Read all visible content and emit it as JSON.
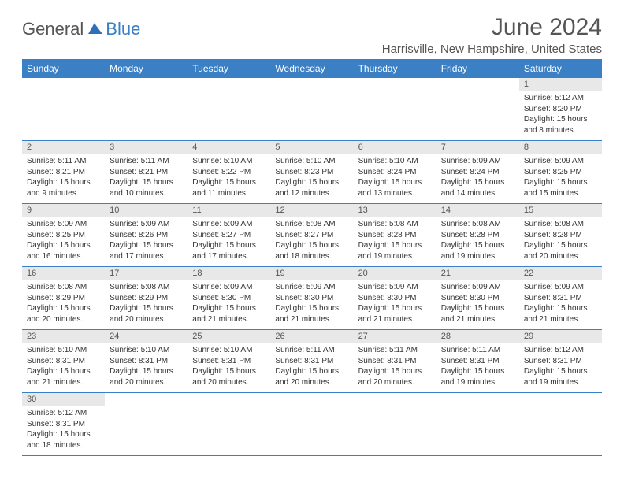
{
  "logo": {
    "general": "General",
    "blue": "Blue"
  },
  "title": "June 2024",
  "location": "Harrisville, New Hampshire, United States",
  "colors": {
    "header_bg": "#3b7fc4",
    "daynum_bg": "#e8e8e8",
    "border": "#3b7fc4"
  },
  "dayNames": [
    "Sunday",
    "Monday",
    "Tuesday",
    "Wednesday",
    "Thursday",
    "Friday",
    "Saturday"
  ],
  "weeks": [
    [
      {
        "empty": true
      },
      {
        "empty": true
      },
      {
        "empty": true
      },
      {
        "empty": true
      },
      {
        "empty": true
      },
      {
        "empty": true
      },
      {
        "n": "1",
        "sunrise": "Sunrise: 5:12 AM",
        "sunset": "Sunset: 8:20 PM",
        "daylight": "Daylight: 15 hours and 8 minutes."
      }
    ],
    [
      {
        "n": "2",
        "sunrise": "Sunrise: 5:11 AM",
        "sunset": "Sunset: 8:21 PM",
        "daylight": "Daylight: 15 hours and 9 minutes."
      },
      {
        "n": "3",
        "sunrise": "Sunrise: 5:11 AM",
        "sunset": "Sunset: 8:21 PM",
        "daylight": "Daylight: 15 hours and 10 minutes."
      },
      {
        "n": "4",
        "sunrise": "Sunrise: 5:10 AM",
        "sunset": "Sunset: 8:22 PM",
        "daylight": "Daylight: 15 hours and 11 minutes."
      },
      {
        "n": "5",
        "sunrise": "Sunrise: 5:10 AM",
        "sunset": "Sunset: 8:23 PM",
        "daylight": "Daylight: 15 hours and 12 minutes."
      },
      {
        "n": "6",
        "sunrise": "Sunrise: 5:10 AM",
        "sunset": "Sunset: 8:24 PM",
        "daylight": "Daylight: 15 hours and 13 minutes."
      },
      {
        "n": "7",
        "sunrise": "Sunrise: 5:09 AM",
        "sunset": "Sunset: 8:24 PM",
        "daylight": "Daylight: 15 hours and 14 minutes."
      },
      {
        "n": "8",
        "sunrise": "Sunrise: 5:09 AM",
        "sunset": "Sunset: 8:25 PM",
        "daylight": "Daylight: 15 hours and 15 minutes."
      }
    ],
    [
      {
        "n": "9",
        "sunrise": "Sunrise: 5:09 AM",
        "sunset": "Sunset: 8:25 PM",
        "daylight": "Daylight: 15 hours and 16 minutes."
      },
      {
        "n": "10",
        "sunrise": "Sunrise: 5:09 AM",
        "sunset": "Sunset: 8:26 PM",
        "daylight": "Daylight: 15 hours and 17 minutes."
      },
      {
        "n": "11",
        "sunrise": "Sunrise: 5:09 AM",
        "sunset": "Sunset: 8:27 PM",
        "daylight": "Daylight: 15 hours and 17 minutes."
      },
      {
        "n": "12",
        "sunrise": "Sunrise: 5:08 AM",
        "sunset": "Sunset: 8:27 PM",
        "daylight": "Daylight: 15 hours and 18 minutes."
      },
      {
        "n": "13",
        "sunrise": "Sunrise: 5:08 AM",
        "sunset": "Sunset: 8:28 PM",
        "daylight": "Daylight: 15 hours and 19 minutes."
      },
      {
        "n": "14",
        "sunrise": "Sunrise: 5:08 AM",
        "sunset": "Sunset: 8:28 PM",
        "daylight": "Daylight: 15 hours and 19 minutes."
      },
      {
        "n": "15",
        "sunrise": "Sunrise: 5:08 AM",
        "sunset": "Sunset: 8:28 PM",
        "daylight": "Daylight: 15 hours and 20 minutes."
      }
    ],
    [
      {
        "n": "16",
        "sunrise": "Sunrise: 5:08 AM",
        "sunset": "Sunset: 8:29 PM",
        "daylight": "Daylight: 15 hours and 20 minutes."
      },
      {
        "n": "17",
        "sunrise": "Sunrise: 5:08 AM",
        "sunset": "Sunset: 8:29 PM",
        "daylight": "Daylight: 15 hours and 20 minutes."
      },
      {
        "n": "18",
        "sunrise": "Sunrise: 5:09 AM",
        "sunset": "Sunset: 8:30 PM",
        "daylight": "Daylight: 15 hours and 21 minutes."
      },
      {
        "n": "19",
        "sunrise": "Sunrise: 5:09 AM",
        "sunset": "Sunset: 8:30 PM",
        "daylight": "Daylight: 15 hours and 21 minutes."
      },
      {
        "n": "20",
        "sunrise": "Sunrise: 5:09 AM",
        "sunset": "Sunset: 8:30 PM",
        "daylight": "Daylight: 15 hours and 21 minutes."
      },
      {
        "n": "21",
        "sunrise": "Sunrise: 5:09 AM",
        "sunset": "Sunset: 8:30 PM",
        "daylight": "Daylight: 15 hours and 21 minutes."
      },
      {
        "n": "22",
        "sunrise": "Sunrise: 5:09 AM",
        "sunset": "Sunset: 8:31 PM",
        "daylight": "Daylight: 15 hours and 21 minutes."
      }
    ],
    [
      {
        "n": "23",
        "sunrise": "Sunrise: 5:10 AM",
        "sunset": "Sunset: 8:31 PM",
        "daylight": "Daylight: 15 hours and 21 minutes."
      },
      {
        "n": "24",
        "sunrise": "Sunrise: 5:10 AM",
        "sunset": "Sunset: 8:31 PM",
        "daylight": "Daylight: 15 hours and 20 minutes."
      },
      {
        "n": "25",
        "sunrise": "Sunrise: 5:10 AM",
        "sunset": "Sunset: 8:31 PM",
        "daylight": "Daylight: 15 hours and 20 minutes."
      },
      {
        "n": "26",
        "sunrise": "Sunrise: 5:11 AM",
        "sunset": "Sunset: 8:31 PM",
        "daylight": "Daylight: 15 hours and 20 minutes."
      },
      {
        "n": "27",
        "sunrise": "Sunrise: 5:11 AM",
        "sunset": "Sunset: 8:31 PM",
        "daylight": "Daylight: 15 hours and 20 minutes."
      },
      {
        "n": "28",
        "sunrise": "Sunrise: 5:11 AM",
        "sunset": "Sunset: 8:31 PM",
        "daylight": "Daylight: 15 hours and 19 minutes."
      },
      {
        "n": "29",
        "sunrise": "Sunrise: 5:12 AM",
        "sunset": "Sunset: 8:31 PM",
        "daylight": "Daylight: 15 hours and 19 minutes."
      }
    ],
    [
      {
        "n": "30",
        "sunrise": "Sunrise: 5:12 AM",
        "sunset": "Sunset: 8:31 PM",
        "daylight": "Daylight: 15 hours and 18 minutes."
      },
      {
        "empty": true
      },
      {
        "empty": true
      },
      {
        "empty": true
      },
      {
        "empty": true
      },
      {
        "empty": true
      },
      {
        "empty": true
      }
    ]
  ]
}
